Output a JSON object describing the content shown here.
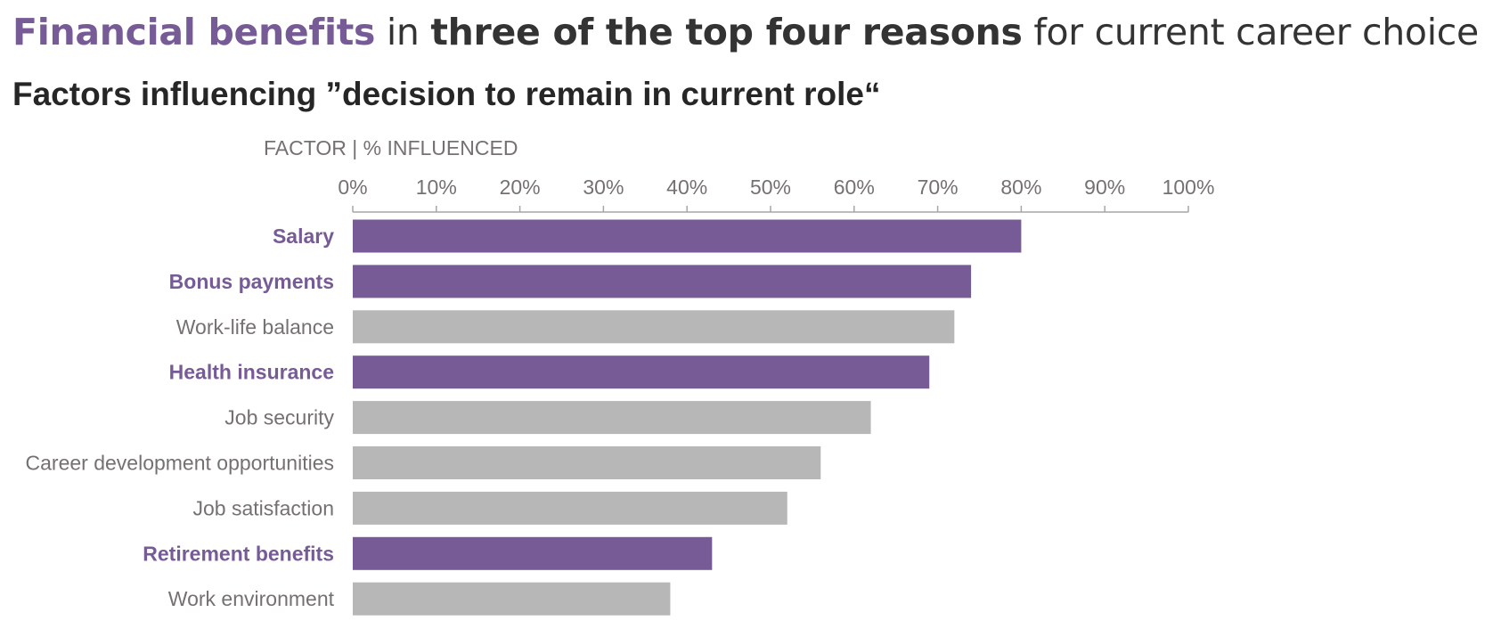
{
  "header": {
    "title_accent": "Financial benefits",
    "title_part2": " in ",
    "title_strong": "three of the top four reasons",
    "title_part4": " for current career choice",
    "subtitle": "Factors influencing ”decision to remain in current role“"
  },
  "colors": {
    "highlight": "#765B97",
    "muted_bar": "#B7B7B7",
    "muted_text": "#767171",
    "axis": "#A6A6A6"
  },
  "chart_data": {
    "type": "bar",
    "orientation": "horizontal",
    "axis_title": "FACTOR | % INFLUENCED",
    "categories": [
      "Salary",
      "Bonus payments",
      "Work-life balance",
      "Health insurance",
      "Job security",
      "Career development opportunities",
      "Job satisfaction",
      "Retirement benefits",
      "Work environment"
    ],
    "values": [
      80,
      74,
      72,
      69,
      62,
      56,
      52,
      43,
      38
    ],
    "highlighted": [
      true,
      true,
      false,
      true,
      false,
      false,
      false,
      true,
      false
    ],
    "xlim": [
      0,
      100
    ],
    "ticks": [
      0,
      10,
      20,
      30,
      40,
      50,
      60,
      70,
      80,
      90,
      100
    ],
    "tick_labels": [
      "0%",
      "10%",
      "20%",
      "30%",
      "40%",
      "50%",
      "60%",
      "70%",
      "80%",
      "90%",
      "100%"
    ],
    "axis_position": "top",
    "grid": false,
    "legend": "none",
    "data_labels": false
  }
}
